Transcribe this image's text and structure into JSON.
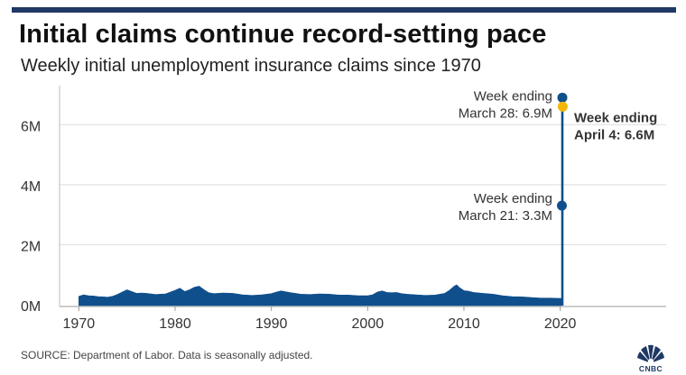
{
  "header": {
    "title": "Initial claims continue record-setting pace",
    "subtitle": "Weekly initial unemployment insurance claims since 1970"
  },
  "footer": {
    "source": "SOURCE: Department of Labor. Data is seasonally adjusted.",
    "logo_text": "CNBC"
  },
  "colors": {
    "bar": "#0f4f8c",
    "highlight": "#f2b705",
    "axis_text": "#333333",
    "grid": "#dddddd",
    "top_bar": "#1f3864"
  },
  "chart_data": {
    "type": "area",
    "title": "Initial claims continue record-setting pace",
    "subtitle": "Weekly initial unemployment insurance claims since 1970",
    "xlabel": "",
    "ylabel": "",
    "xlim": [
      1968,
      2031
    ],
    "ylim": [
      0,
      7.3
    ],
    "y_unit": "millions",
    "x_ticks": [
      1970,
      1980,
      1990,
      2000,
      2010,
      2020
    ],
    "y_ticks": [
      {
        "value": 0,
        "label": "0M"
      },
      {
        "value": 2,
        "label": "2M"
      },
      {
        "value": 4,
        "label": "4M"
      },
      {
        "value": 6,
        "label": "6M"
      }
    ],
    "grid": true,
    "series": [
      {
        "x": [
          1970,
          1970.5,
          1971,
          1971.5,
          1972,
          1972.5,
          1973,
          1973.5,
          1974,
          1974.5,
          1975,
          1975.5,
          1976,
          1976.5,
          1977,
          1977.5,
          1978,
          1978.5,
          1979,
          1979.5,
          1980,
          1980.5,
          1981,
          1981.5,
          1982,
          1982.5,
          1983,
          1983.5,
          1984,
          1985,
          1986,
          1987,
          1988,
          1989,
          1990,
          1990.5,
          1991,
          1991.5,
          1992,
          1992.5,
          1993,
          1994,
          1995,
          1996,
          1997,
          1998,
          1999,
          2000,
          2000.5,
          2001,
          2001.5,
          2002,
          2002.5,
          2003,
          2003.5,
          2004,
          2005,
          2006,
          2007,
          2008,
          2008.5,
          2009,
          2009.25,
          2009.5,
          2010,
          2010.5,
          2011,
          2012,
          2013,
          2014,
          2015,
          2016,
          2017,
          2018,
          2019,
          2020.1
        ],
        "values": [
          0.28,
          0.33,
          0.3,
          0.29,
          0.27,
          0.26,
          0.25,
          0.28,
          0.34,
          0.42,
          0.5,
          0.44,
          0.38,
          0.39,
          0.38,
          0.36,
          0.34,
          0.35,
          0.36,
          0.42,
          0.48,
          0.55,
          0.44,
          0.5,
          0.58,
          0.62,
          0.5,
          0.4,
          0.37,
          0.39,
          0.38,
          0.33,
          0.31,
          0.33,
          0.37,
          0.42,
          0.46,
          0.43,
          0.4,
          0.38,
          0.35,
          0.34,
          0.36,
          0.35,
          0.32,
          0.32,
          0.3,
          0.3,
          0.33,
          0.42,
          0.46,
          0.41,
          0.4,
          0.41,
          0.37,
          0.35,
          0.33,
          0.31,
          0.32,
          0.38,
          0.48,
          0.62,
          0.66,
          0.58,
          0.47,
          0.45,
          0.41,
          0.38,
          0.35,
          0.3,
          0.27,
          0.26,
          0.24,
          0.22,
          0.22,
          0.21
        ]
      }
    ],
    "highlights": [
      {
        "x": 2020.17,
        "value": 3.3,
        "label_lines": [
          "Week ending",
          "March 21: 3.3M"
        ],
        "color": "#0f4f8c",
        "bold": false
      },
      {
        "x": 2020.22,
        "value": 6.9,
        "label_lines": [
          "Week ending",
          "March 28: 6.9M"
        ],
        "color": "#0f4f8c",
        "bold": false
      },
      {
        "x": 2020.26,
        "value": 6.6,
        "label_lines": [
          "Week ending",
          "April 4: 6.6M"
        ],
        "color": "#f2b705",
        "bold": true
      }
    ]
  }
}
